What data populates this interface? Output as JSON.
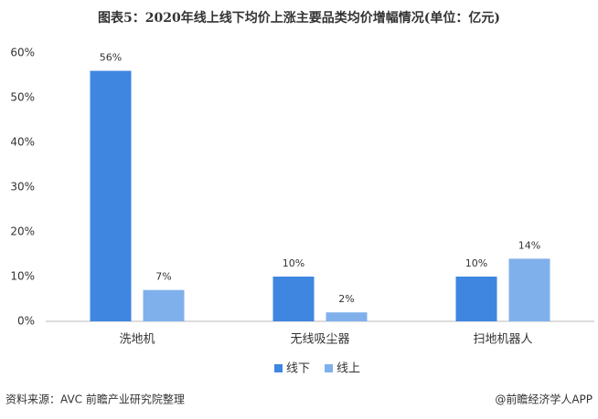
{
  "chart_data": {
    "type": "bar",
    "title": "图表5：2020年线上线下均价上涨主要品类均价增幅情况(单位：亿元)",
    "categories": [
      "洗地机",
      "无线吸尘器",
      "扫地机器人"
    ],
    "series": [
      {
        "name": "线下",
        "color": "#3f86e1",
        "values": [
          56,
          10,
          10
        ],
        "value_labels": [
          "56%",
          "10%",
          "10%"
        ]
      },
      {
        "name": "线上",
        "color": "#80b0eb",
        "values": [
          7,
          2,
          14
        ],
        "value_labels": [
          "7%",
          "2%",
          "14%"
        ]
      }
    ],
    "ylim": [
      0,
      60
    ],
    "yticks": [
      {
        "value": 0,
        "label": "0%"
      },
      {
        "value": 10,
        "label": "10%"
      },
      {
        "value": 20,
        "label": "20%"
      },
      {
        "value": 30,
        "label": "30%"
      },
      {
        "value": 40,
        "label": "40%"
      },
      {
        "value": 50,
        "label": "50%"
      },
      {
        "value": 60,
        "label": "60%"
      }
    ],
    "grid": false,
    "legend": "bottom",
    "source": "资料来源：AVC 前瞻产业研究院整理",
    "credit": "@前瞻经济学人APP"
  }
}
